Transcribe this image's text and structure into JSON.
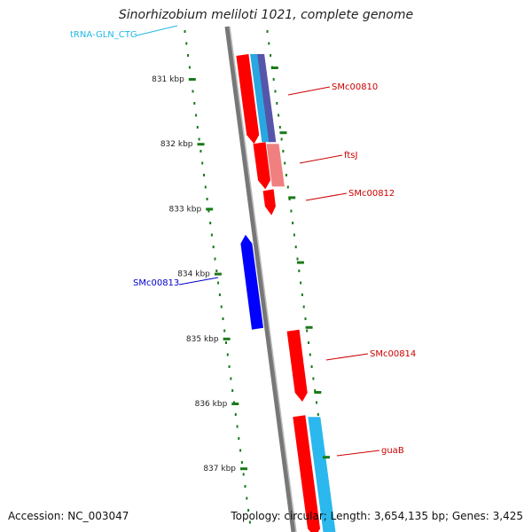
{
  "title": "Sinorhizobium meliloti 1021, complete genome",
  "footer": {
    "accession": "Accession: NC_003047",
    "topology": "Topology: circular; Length: 3,654,135 bp; Genes: 3,425"
  },
  "colors": {
    "backbone": "#7f7f7f",
    "tick": "#1a7a1a",
    "forward_cds": "#ff0000",
    "reverse_cds": "#0000ff",
    "trna": "#22b8e6",
    "label_red": "#cc0000",
    "label_blue": "#0000cc",
    "label_cyan": "#22b8e6"
  },
  "ticks": [
    {
      "label": "831 kbp",
      "kb": 831
    },
    {
      "label": "832 kbp",
      "kb": 832
    },
    {
      "label": "833 kbp",
      "kb": 833
    },
    {
      "label": "834 kbp",
      "kb": 834
    },
    {
      "label": "835 kbp",
      "kb": 835
    },
    {
      "label": "836 kbp",
      "kb": 836
    },
    {
      "label": "837 kbp",
      "kb": 837
    }
  ],
  "features": [
    {
      "label": "SMc00810",
      "start_kb": 831.0,
      "end_kb": 832.0,
      "strand": "forward",
      "color": "#ff0000"
    },
    {
      "label": "ftsJ",
      "start_kb": 832.0,
      "end_kb": 832.7,
      "strand": "forward",
      "color": "#ff0000"
    },
    {
      "label": "SMc00812",
      "start_kb": 832.7,
      "end_kb": 833.1,
      "strand": "forward",
      "color": "#ff0000"
    },
    {
      "label": "SMc00813",
      "start_kb": 833.4,
      "end_kb": 834.7,
      "strand": "reverse",
      "color": "#0000ff"
    },
    {
      "label": "SMc00814",
      "start_kb": 835.0,
      "end_kb": 836.0,
      "strand": "forward",
      "color": "#ff0000"
    },
    {
      "label": "guaB",
      "start_kb": 836.1,
      "end_kb": 837.6,
      "strand": "forward",
      "color": "#ff0000"
    },
    {
      "label": "tRNA-GLN_CTG",
      "start_kb": 830.3,
      "end_kb": 830.4,
      "strand": "forward",
      "color": "#22b8e6"
    }
  ]
}
